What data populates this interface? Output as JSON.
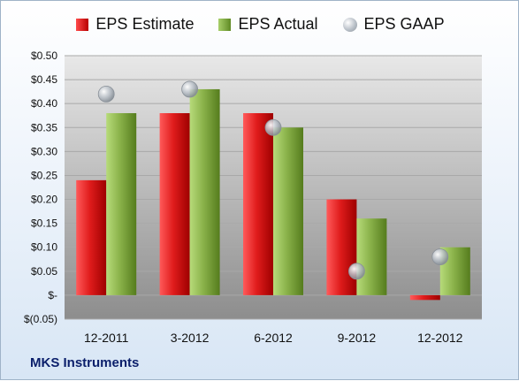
{
  "legend": {
    "estimate": "EPS Estimate",
    "actual": "EPS Actual",
    "gaap": "EPS GAAP"
  },
  "footer": "MKS Instruments",
  "colors": {
    "estimate": "#d11a1a",
    "actual": "#7fa83f",
    "gaap": "#b7bec6",
    "plot_bg_top": "#e6e6e6",
    "plot_bg_bottom": "#8f8f8f"
  },
  "chart_data": {
    "type": "bar",
    "categories": [
      "12-2011",
      "3-2012",
      "6-2012",
      "9-2012",
      "12-2012"
    ],
    "series": [
      {
        "name": "EPS Estimate",
        "values": [
          0.24,
          0.38,
          0.38,
          0.2,
          -0.01
        ]
      },
      {
        "name": "EPS Actual",
        "values": [
          0.38,
          0.43,
          0.35,
          0.16,
          0.1
        ]
      },
      {
        "name": "EPS GAAP",
        "type": "scatter",
        "values": [
          0.42,
          0.43,
          0.35,
          0.05,
          0.08
        ]
      }
    ],
    "y_ticks": [
      0.5,
      0.45,
      0.4,
      0.35,
      0.3,
      0.25,
      0.2,
      0.15,
      0.1,
      0.05,
      0,
      -0.05
    ],
    "y_tick_labels": [
      "$0.50",
      "$0.45",
      "$0.40",
      "$0.35",
      "$0.30",
      "$0.25",
      "$0.20",
      "$0.15",
      "$0.10",
      "$0.05",
      "$-",
      "$(0.05)"
    ],
    "ylim": [
      -0.05,
      0.5
    ],
    "grid": true,
    "legend_position": "top"
  }
}
